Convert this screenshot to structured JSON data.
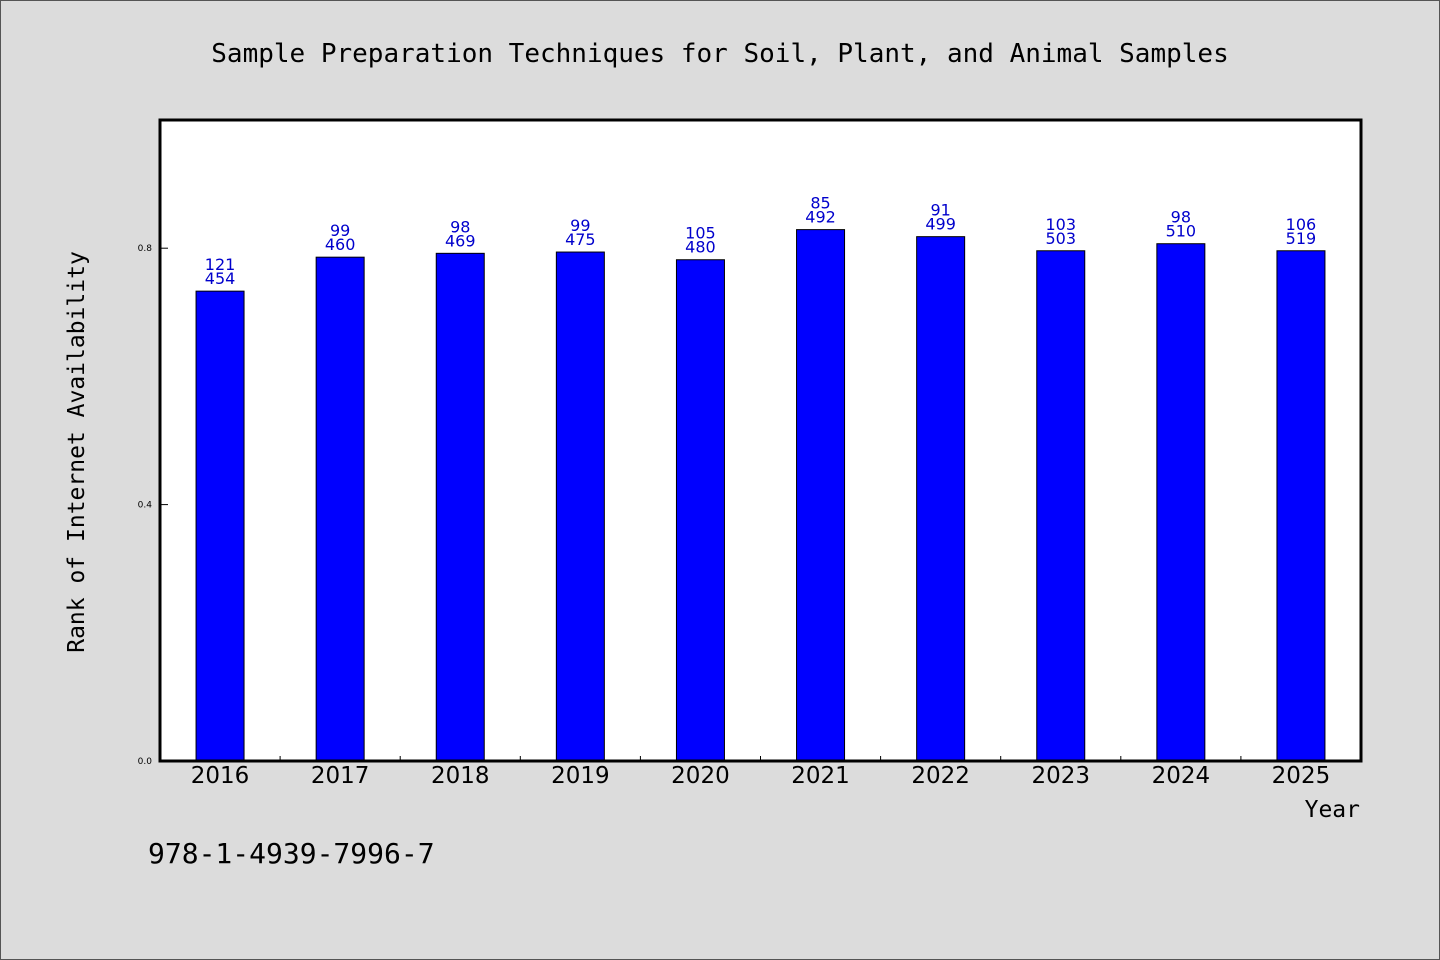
{
  "chart_data": {
    "type": "bar",
    "title": "Sample Preparation Techniques for Soil, Plant, and Animal Samples",
    "xlabel": "Year",
    "ylabel": "Rank of Internet Availability",
    "ylim": [
      0,
      1.0
    ],
    "yticks": [
      "0.0",
      "0.4",
      "0.8"
    ],
    "grid": false,
    "categories": [
      "2016",
      "2017",
      "2018",
      "2019",
      "2020",
      "2021",
      "2022",
      "2023",
      "2024",
      "2025"
    ],
    "values": [
      0.733,
      0.786,
      0.792,
      0.794,
      0.782,
      0.829,
      0.818,
      0.796,
      0.807,
      0.796
    ],
    "label_top": [
      "121",
      "99",
      "98",
      "99",
      "105",
      "85",
      "91",
      "103",
      "98",
      "106"
    ],
    "label_bottom": [
      "454",
      "460",
      "469",
      "475",
      "480",
      "492",
      "499",
      "503",
      "510",
      "519"
    ],
    "bar_color": "#0000ff",
    "label_color": "#0000cc",
    "background_color": "#dcdcdc"
  },
  "footer_text": "978-1-4939-7996-7"
}
